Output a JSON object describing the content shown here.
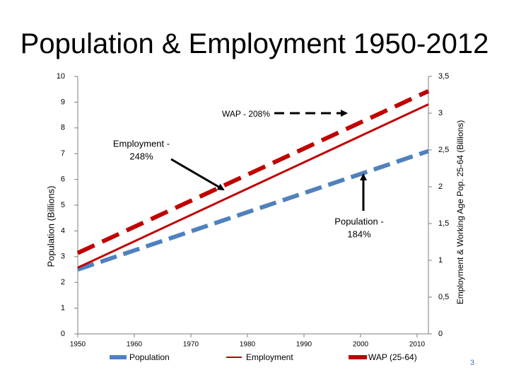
{
  "slide": {
    "title": "Population & Employment 1950-2012",
    "page_number": "3"
  },
  "colors": {
    "population": "#4f81bd",
    "employment": "#c00000",
    "wap": "#c00000",
    "axis": "#7f7f7f",
    "annotation_arrow": "#000000"
  },
  "chart_data": {
    "type": "line",
    "title": "Population & Employment 1950-2012",
    "x": [
      1950,
      2012
    ],
    "xlim": [
      1950,
      2012
    ],
    "x_ticks": [
      1950,
      1960,
      1970,
      1980,
      1990,
      2000,
      2010
    ],
    "x_tick_labels": [
      "1950",
      "1960",
      "1970",
      "1980",
      "1990",
      "2000",
      "2010"
    ],
    "ylabel": "Population (Billions)",
    "ylim": [
      0,
      10
    ],
    "y_ticks": [
      0,
      1,
      2,
      3,
      4,
      5,
      6,
      7,
      8,
      9,
      10
    ],
    "y_tick_labels": [
      "0",
      "1",
      "2",
      "3",
      "4",
      "5",
      "6",
      "7",
      "8",
      "9",
      "10"
    ],
    "y2label": "Employment & Working Age Pop. 25-64 (Billions)",
    "y2lim": [
      0,
      3.5
    ],
    "y2_ticks": [
      0,
      0.5,
      1,
      1.5,
      2,
      2.5,
      3,
      3.5
    ],
    "y2_tick_labels": [
      "0",
      "0,5",
      "1",
      "1,5",
      "2",
      "2,5",
      "3",
      "3,5"
    ],
    "series": [
      {
        "name": "Population",
        "axis": "left",
        "style": "dashed-thick",
        "color": "#4f81bd",
        "values": [
          2.5,
          7.1
        ]
      },
      {
        "name": "Employment",
        "axis": "right",
        "style": "solid",
        "color": "#c00000",
        "values": [
          0.9,
          3.12
        ]
      },
      {
        "name": "WAP (25-64)",
        "axis": "right",
        "style": "dashed-thick",
        "color": "#c00000",
        "values": [
          1.1,
          3.3
        ]
      }
    ],
    "annotations": [
      {
        "text_lines": [
          "WAP - 208%"
        ],
        "arrow": "dashed"
      },
      {
        "text_lines": [
          "Employment -",
          "248%"
        ],
        "arrow": "solid"
      },
      {
        "text_lines": [
          "Population -",
          "184%"
        ],
        "arrow": "solid"
      }
    ],
    "legend": [
      "Population",
      "Employment",
      "WAP (25-64)"
    ],
    "legend_position": "bottom",
    "grid": false
  }
}
